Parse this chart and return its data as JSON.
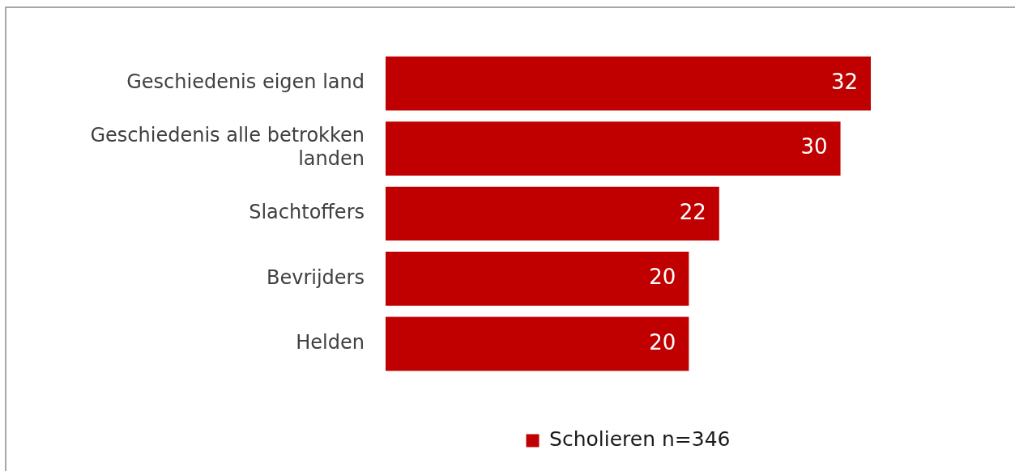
{
  "chart_data": {
    "type": "bar",
    "orientation": "horizontal",
    "categories": [
      "Geschiedenis eigen land",
      "Geschiedenis alle betrokken landen",
      "Slachtoffers",
      "Bevrijders",
      "Helden"
    ],
    "series": [
      {
        "name": "Scholieren n=346",
        "color": "#c00000",
        "values": [
          32,
          30,
          22,
          20,
          20
        ]
      }
    ],
    "data_labels": true,
    "legend": "bottom",
    "tick_labels": "y"
  }
}
